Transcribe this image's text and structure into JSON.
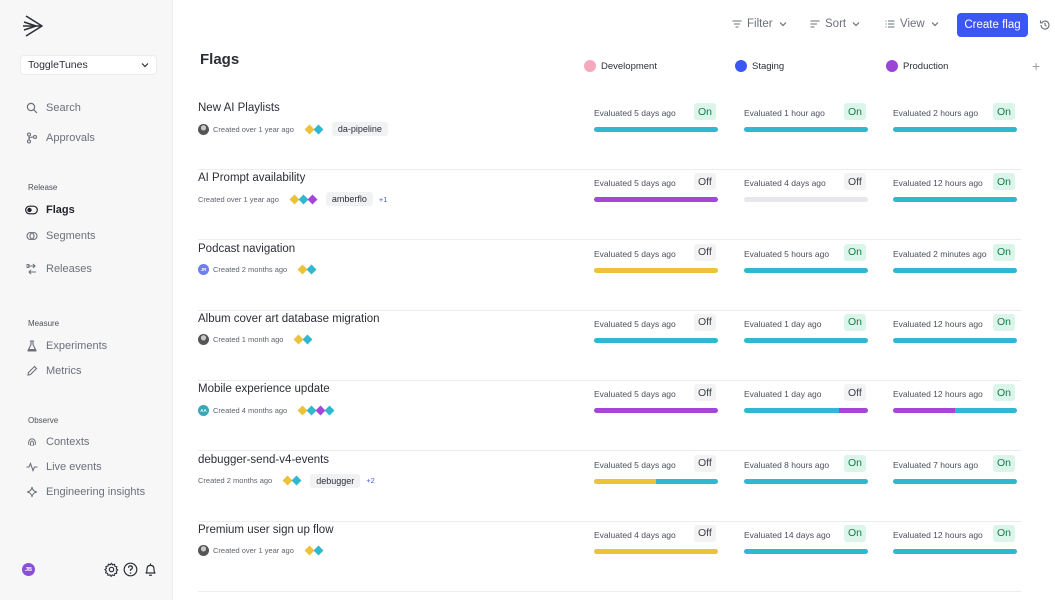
{
  "sidebar": {
    "project": "ToggleTunes",
    "search_label": "Search",
    "approvals_label": "Approvals",
    "sections": {
      "release": "Release",
      "measure": "Measure",
      "observe": "Observe"
    },
    "items": {
      "flags": "Flags",
      "segments": "Segments",
      "releases": "Releases",
      "experiments": "Experiments",
      "metrics": "Metrics",
      "contexts": "Contexts",
      "live_events": "Live events",
      "engineering_insights": "Engineering insights"
    },
    "user_initials": "JB"
  },
  "toolbar": {
    "filter": "Filter",
    "sort": "Sort",
    "view": "View",
    "create": "Create flag"
  },
  "page_title": "Flags",
  "environments": [
    {
      "name": "Development",
      "color": "#f5a9bf"
    },
    {
      "name": "Staging",
      "color": "#3b56f5"
    },
    {
      "name": "Production",
      "color": "#9a45d6"
    }
  ],
  "colors": {
    "teal": "#2fb8cf",
    "purple": "#a347d9",
    "yellow": "#ecc23b",
    "gray": "#e6e7ea"
  },
  "flags": [
    {
      "name": "New AI Playlists",
      "created": "Created over 1 year ago",
      "avatar": "photo",
      "avatar_text": "",
      "diamonds": [
        "#ecc23b",
        "#2fb8cf"
      ],
      "tag": "da-pipeline",
      "more": "",
      "envs": [
        {
          "eval": "Evaluated 5 days ago",
          "status": "On",
          "bar": [
            [
              "teal",
              1
            ]
          ]
        },
        {
          "eval": "Evaluated 1 hour ago",
          "status": "On",
          "bar": [
            [
              "teal",
              1
            ]
          ]
        },
        {
          "eval": "Evaluated 2 hours ago",
          "status": "On",
          "bar": [
            [
              "teal",
              1
            ]
          ]
        }
      ]
    },
    {
      "name": "AI Prompt availability",
      "created": "Created over 1 year ago",
      "avatar": "none",
      "avatar_text": "",
      "diamonds": [
        "#ecc23b",
        "#2fb8cf",
        "#a347d9"
      ],
      "tag": "amberflo",
      "more": "+1",
      "envs": [
        {
          "eval": "Evaluated 5 days ago",
          "status": "Off",
          "bar": [
            [
              "purple",
              1
            ]
          ]
        },
        {
          "eval": "Evaluated 4 days ago",
          "status": "Off",
          "bar": [
            [
              "gray",
              1
            ]
          ]
        },
        {
          "eval": "Evaluated 12 hours ago",
          "status": "On",
          "bar": [
            [
              "teal",
              1
            ]
          ]
        }
      ]
    },
    {
      "name": "Podcast navigation",
      "created": "Created 2 months ago",
      "avatar": "initials",
      "avatar_text": "JR",
      "diamonds": [
        "#ecc23b",
        "#2fb8cf"
      ],
      "tag": "",
      "more": "",
      "envs": [
        {
          "eval": "Evaluated 5 days ago",
          "status": "Off",
          "bar": [
            [
              "yellow",
              1
            ]
          ]
        },
        {
          "eval": "Evaluated 5 hours ago",
          "status": "On",
          "bar": [
            [
              "teal",
              1
            ]
          ]
        },
        {
          "eval": "Evaluated 2 minutes ago",
          "status": "On",
          "bar": [
            [
              "teal",
              1
            ]
          ]
        }
      ]
    },
    {
      "name": "Album cover art database migration",
      "created": "Created 1 month ago",
      "avatar": "photo",
      "avatar_text": "",
      "diamonds": [
        "#ecc23b",
        "#2fb8cf"
      ],
      "tag": "",
      "more": "",
      "envs": [
        {
          "eval": "Evaluated 5 days ago",
          "status": "Off",
          "bar": [
            [
              "teal",
              1
            ]
          ]
        },
        {
          "eval": "Evaluated 1 day ago",
          "status": "On",
          "bar": [
            [
              "teal",
              1
            ]
          ]
        },
        {
          "eval": "Evaluated 12 hours ago",
          "status": "On",
          "bar": [
            [
              "teal",
              1
            ]
          ]
        }
      ]
    },
    {
      "name": "Mobile experience update",
      "created": "Created 4 months ago",
      "avatar": "initials",
      "avatar_text": "AA",
      "diamonds": [
        "#ecc23b",
        "#2fb8cf",
        "#a347d9",
        "#2fb8cf"
      ],
      "tag": "",
      "more": "",
      "envs": [
        {
          "eval": "Evaluated 5 days ago",
          "status": "Off",
          "bar": [
            [
              "purple",
              1
            ]
          ]
        },
        {
          "eval": "Evaluated 1 day ago",
          "status": "Off",
          "bar": [
            [
              "teal",
              0.77
            ],
            [
              "purple",
              0.23
            ]
          ]
        },
        {
          "eval": "Evaluated 12 hours ago",
          "status": "On",
          "bar": [
            [
              "purple",
              0.5
            ],
            [
              "teal",
              0.5
            ]
          ]
        }
      ]
    },
    {
      "name": "debugger-send-v4-events",
      "created": "Created 2 months ago",
      "avatar": "none",
      "avatar_text": "",
      "diamonds": [
        "#ecc23b",
        "#2fb8cf"
      ],
      "tag": "debugger",
      "more": "+2",
      "envs": [
        {
          "eval": "Evaluated 5 days ago",
          "status": "Off",
          "bar": [
            [
              "yellow",
              0.5
            ],
            [
              "teal",
              0.5
            ]
          ]
        },
        {
          "eval": "Evaluated 8 hours ago",
          "status": "On",
          "bar": [
            [
              "teal",
              1
            ]
          ]
        },
        {
          "eval": "Evaluated 7 hours ago",
          "status": "On",
          "bar": [
            [
              "teal",
              1
            ]
          ]
        }
      ]
    },
    {
      "name": "Premium user sign up flow",
      "created": "Created over 1 year ago",
      "avatar": "photo",
      "avatar_text": "",
      "diamonds": [
        "#ecc23b",
        "#2fb8cf"
      ],
      "tag": "",
      "more": "",
      "envs": [
        {
          "eval": "Evaluated 4 days ago",
          "status": "Off",
          "bar": [
            [
              "yellow",
              1
            ]
          ]
        },
        {
          "eval": "Evaluated 14 days ago",
          "status": "On",
          "bar": [
            [
              "teal",
              1
            ]
          ]
        },
        {
          "eval": "Evaluated 12 hours ago",
          "status": "On",
          "bar": [
            [
              "teal",
              1
            ]
          ]
        }
      ]
    }
  ]
}
